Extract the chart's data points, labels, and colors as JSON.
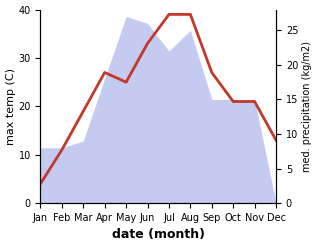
{
  "months": [
    "Jan",
    "Feb",
    "Mar",
    "Apr",
    "May",
    "Jun",
    "Jul",
    "Aug",
    "Sep",
    "Oct",
    "Nov",
    "Dec"
  ],
  "temp_max": [
    4,
    11,
    19,
    27,
    25,
    33,
    39,
    39,
    27,
    21,
    21,
    13
  ],
  "precip_kg": [
    8,
    8,
    9,
    18,
    27,
    26,
    22,
    25,
    15,
    15,
    15,
    0
  ],
  "temp_ylim": [
    0,
    40
  ],
  "temp_yticks": [
    0,
    10,
    20,
    30,
    40
  ],
  "precip_ylim": [
    0,
    28
  ],
  "precip_yticks": [
    0,
    5,
    10,
    15,
    20,
    25
  ],
  "precip_color_fill": "#c5caf0",
  "temp_color": "#c0392b",
  "xlabel": "date (month)",
  "ylabel_left": "max temp (C)",
  "ylabel_right": "med. precipitation (kg/m2)",
  "bg_color": "#ffffff",
  "label_fontsize": 8,
  "tick_fontsize": 7,
  "line_width": 2.0
}
